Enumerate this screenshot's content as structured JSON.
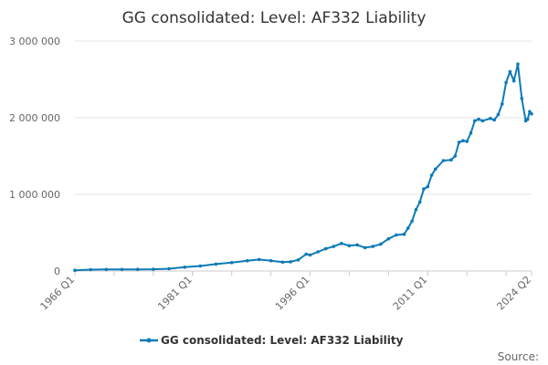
{
  "chart_data": {
    "type": "line",
    "title": "GG consolidated: Level: AF332 Liability",
    "xlabel": "",
    "ylabel": "",
    "x_range": [
      "1966 Q1",
      "2024 Q2"
    ],
    "x_tick_labels": [
      "1966 Q1",
      "1981 Q1",
      "1996 Q1",
      "2011 Q1",
      "2024 Q2"
    ],
    "y_tick_labels": [
      "0",
      "1 000 000",
      "2 000 000",
      "3 000 000"
    ],
    "ylim": [
      0,
      3000000
    ],
    "grid": true,
    "legend_position": "bottom",
    "series": [
      {
        "name": "GG consolidated: Level: AF332 Liability",
        "color": "#0d7ab8",
        "points": [
          [
            "1966 Q1",
            10000
          ],
          [
            "1968 Q1",
            18000
          ],
          [
            "1970 Q1",
            20000
          ],
          [
            "1972 Q1",
            20000
          ],
          [
            "1974 Q1",
            21000
          ],
          [
            "1976 Q1",
            23000
          ],
          [
            "1978 Q1",
            30000
          ],
          [
            "1980 Q1",
            50000
          ],
          [
            "1982 Q1",
            65000
          ],
          [
            "1984 Q1",
            90000
          ],
          [
            "1986 Q1",
            110000
          ],
          [
            "1988 Q1",
            135000
          ],
          [
            "1989 Q3",
            150000
          ],
          [
            "1991 Q1",
            135000
          ],
          [
            "1992 Q3",
            115000
          ],
          [
            "1993 Q3",
            120000
          ],
          [
            "1994 Q3",
            145000
          ],
          [
            "1995 Q3",
            220000
          ],
          [
            "1996 Q1",
            210000
          ],
          [
            "1997 Q1",
            250000
          ],
          [
            "1998 Q1",
            290000
          ],
          [
            "1999 Q1",
            320000
          ],
          [
            "2000 Q1",
            360000
          ],
          [
            "2001 Q1",
            330000
          ],
          [
            "2002 Q1",
            340000
          ],
          [
            "2003 Q1",
            305000
          ],
          [
            "2004 Q1",
            320000
          ],
          [
            "2005 Q1",
            350000
          ],
          [
            "2006 Q1",
            420000
          ],
          [
            "2007 Q1",
            470000
          ],
          [
            "2008 Q1",
            480000
          ],
          [
            "2008 Q3",
            560000
          ],
          [
            "2009 Q1",
            650000
          ],
          [
            "2009 Q3",
            800000
          ],
          [
            "2010 Q1",
            900000
          ],
          [
            "2010 Q3",
            1070000
          ],
          [
            "2011 Q1",
            1100000
          ],
          [
            "2011 Q3",
            1250000
          ],
          [
            "2012 Q1",
            1330000
          ],
          [
            "2013 Q1",
            1440000
          ],
          [
            "2014 Q1",
            1450000
          ],
          [
            "2014 Q3",
            1500000
          ],
          [
            "2015 Q1",
            1680000
          ],
          [
            "2015 Q3",
            1700000
          ],
          [
            "2016 Q1",
            1690000
          ],
          [
            "2016 Q3",
            1800000
          ],
          [
            "2017 Q1",
            1960000
          ],
          [
            "2017 Q3",
            1980000
          ],
          [
            "2018 Q1",
            1960000
          ],
          [
            "2019 Q1",
            1990000
          ],
          [
            "2019 Q3",
            1970000
          ],
          [
            "2020 Q1",
            2040000
          ],
          [
            "2020 Q3",
            2180000
          ],
          [
            "2021 Q1",
            2460000
          ],
          [
            "2021 Q3",
            2600000
          ],
          [
            "2022 Q1",
            2480000
          ],
          [
            "2022 Q3",
            2700000
          ],
          [
            "2023 Q1",
            2250000
          ],
          [
            "2023 Q3",
            1960000
          ],
          [
            "2023 Q4",
            1980000
          ],
          [
            "2024 Q1",
            2080000
          ],
          [
            "2024 Q2",
            2050000
          ]
        ]
      }
    ]
  },
  "legend": {
    "label": "GG consolidated: Level: AF332 Liability"
  },
  "footer": {
    "source": "Source:"
  }
}
